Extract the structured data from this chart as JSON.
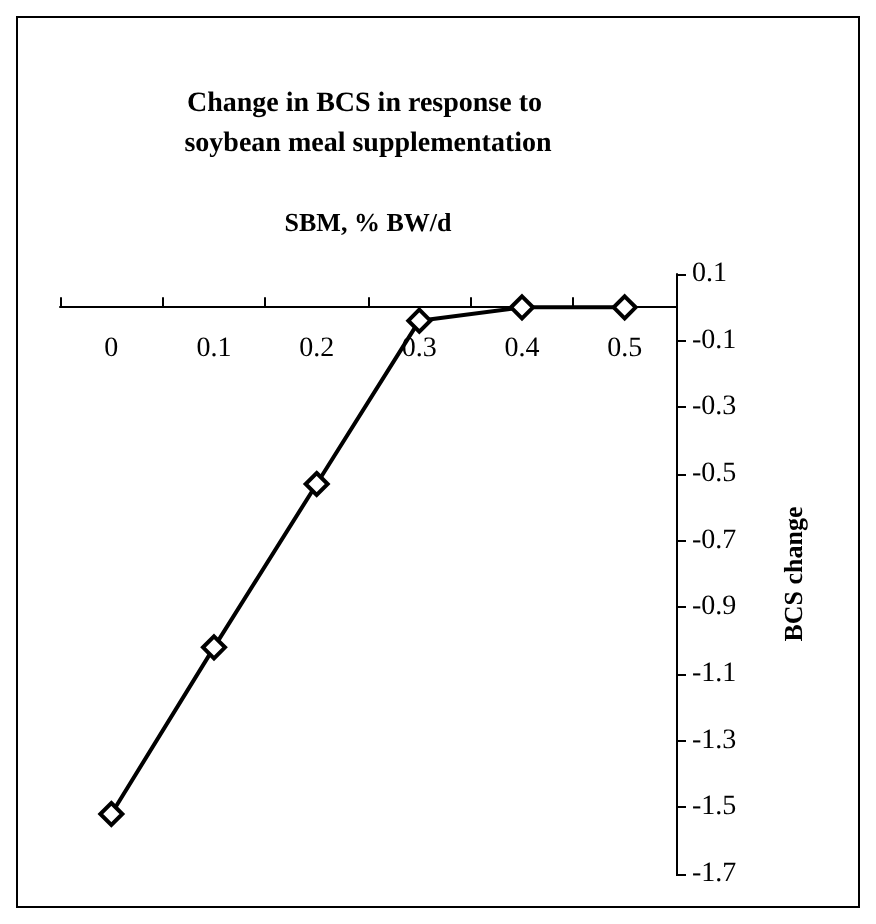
{
  "chart_data": {
    "type": "line",
    "title": "Change in BCS in response to soybean meal supplementation",
    "xlabel": "SBM, % BW/d",
    "ylabel": "BCS change",
    "categories": [
      "0",
      "0.1",
      "0.2",
      "0.3",
      "0.4",
      "0.5"
    ],
    "series": [
      {
        "color": "#000000",
        "values": [
          -1.52,
          -1.02,
          -0.53,
          -0.04,
          0.0,
          0.0
        ]
      }
    ],
    "ylim": [
      -1.7,
      0.1
    ],
    "yticks": [
      0.1,
      -0.1,
      -0.3,
      -0.5,
      -0.7,
      -0.9,
      -1.1,
      -1.3,
      -1.5,
      -1.7
    ],
    "grid": false,
    "marker": "diamond",
    "line_style": "solid"
  }
}
